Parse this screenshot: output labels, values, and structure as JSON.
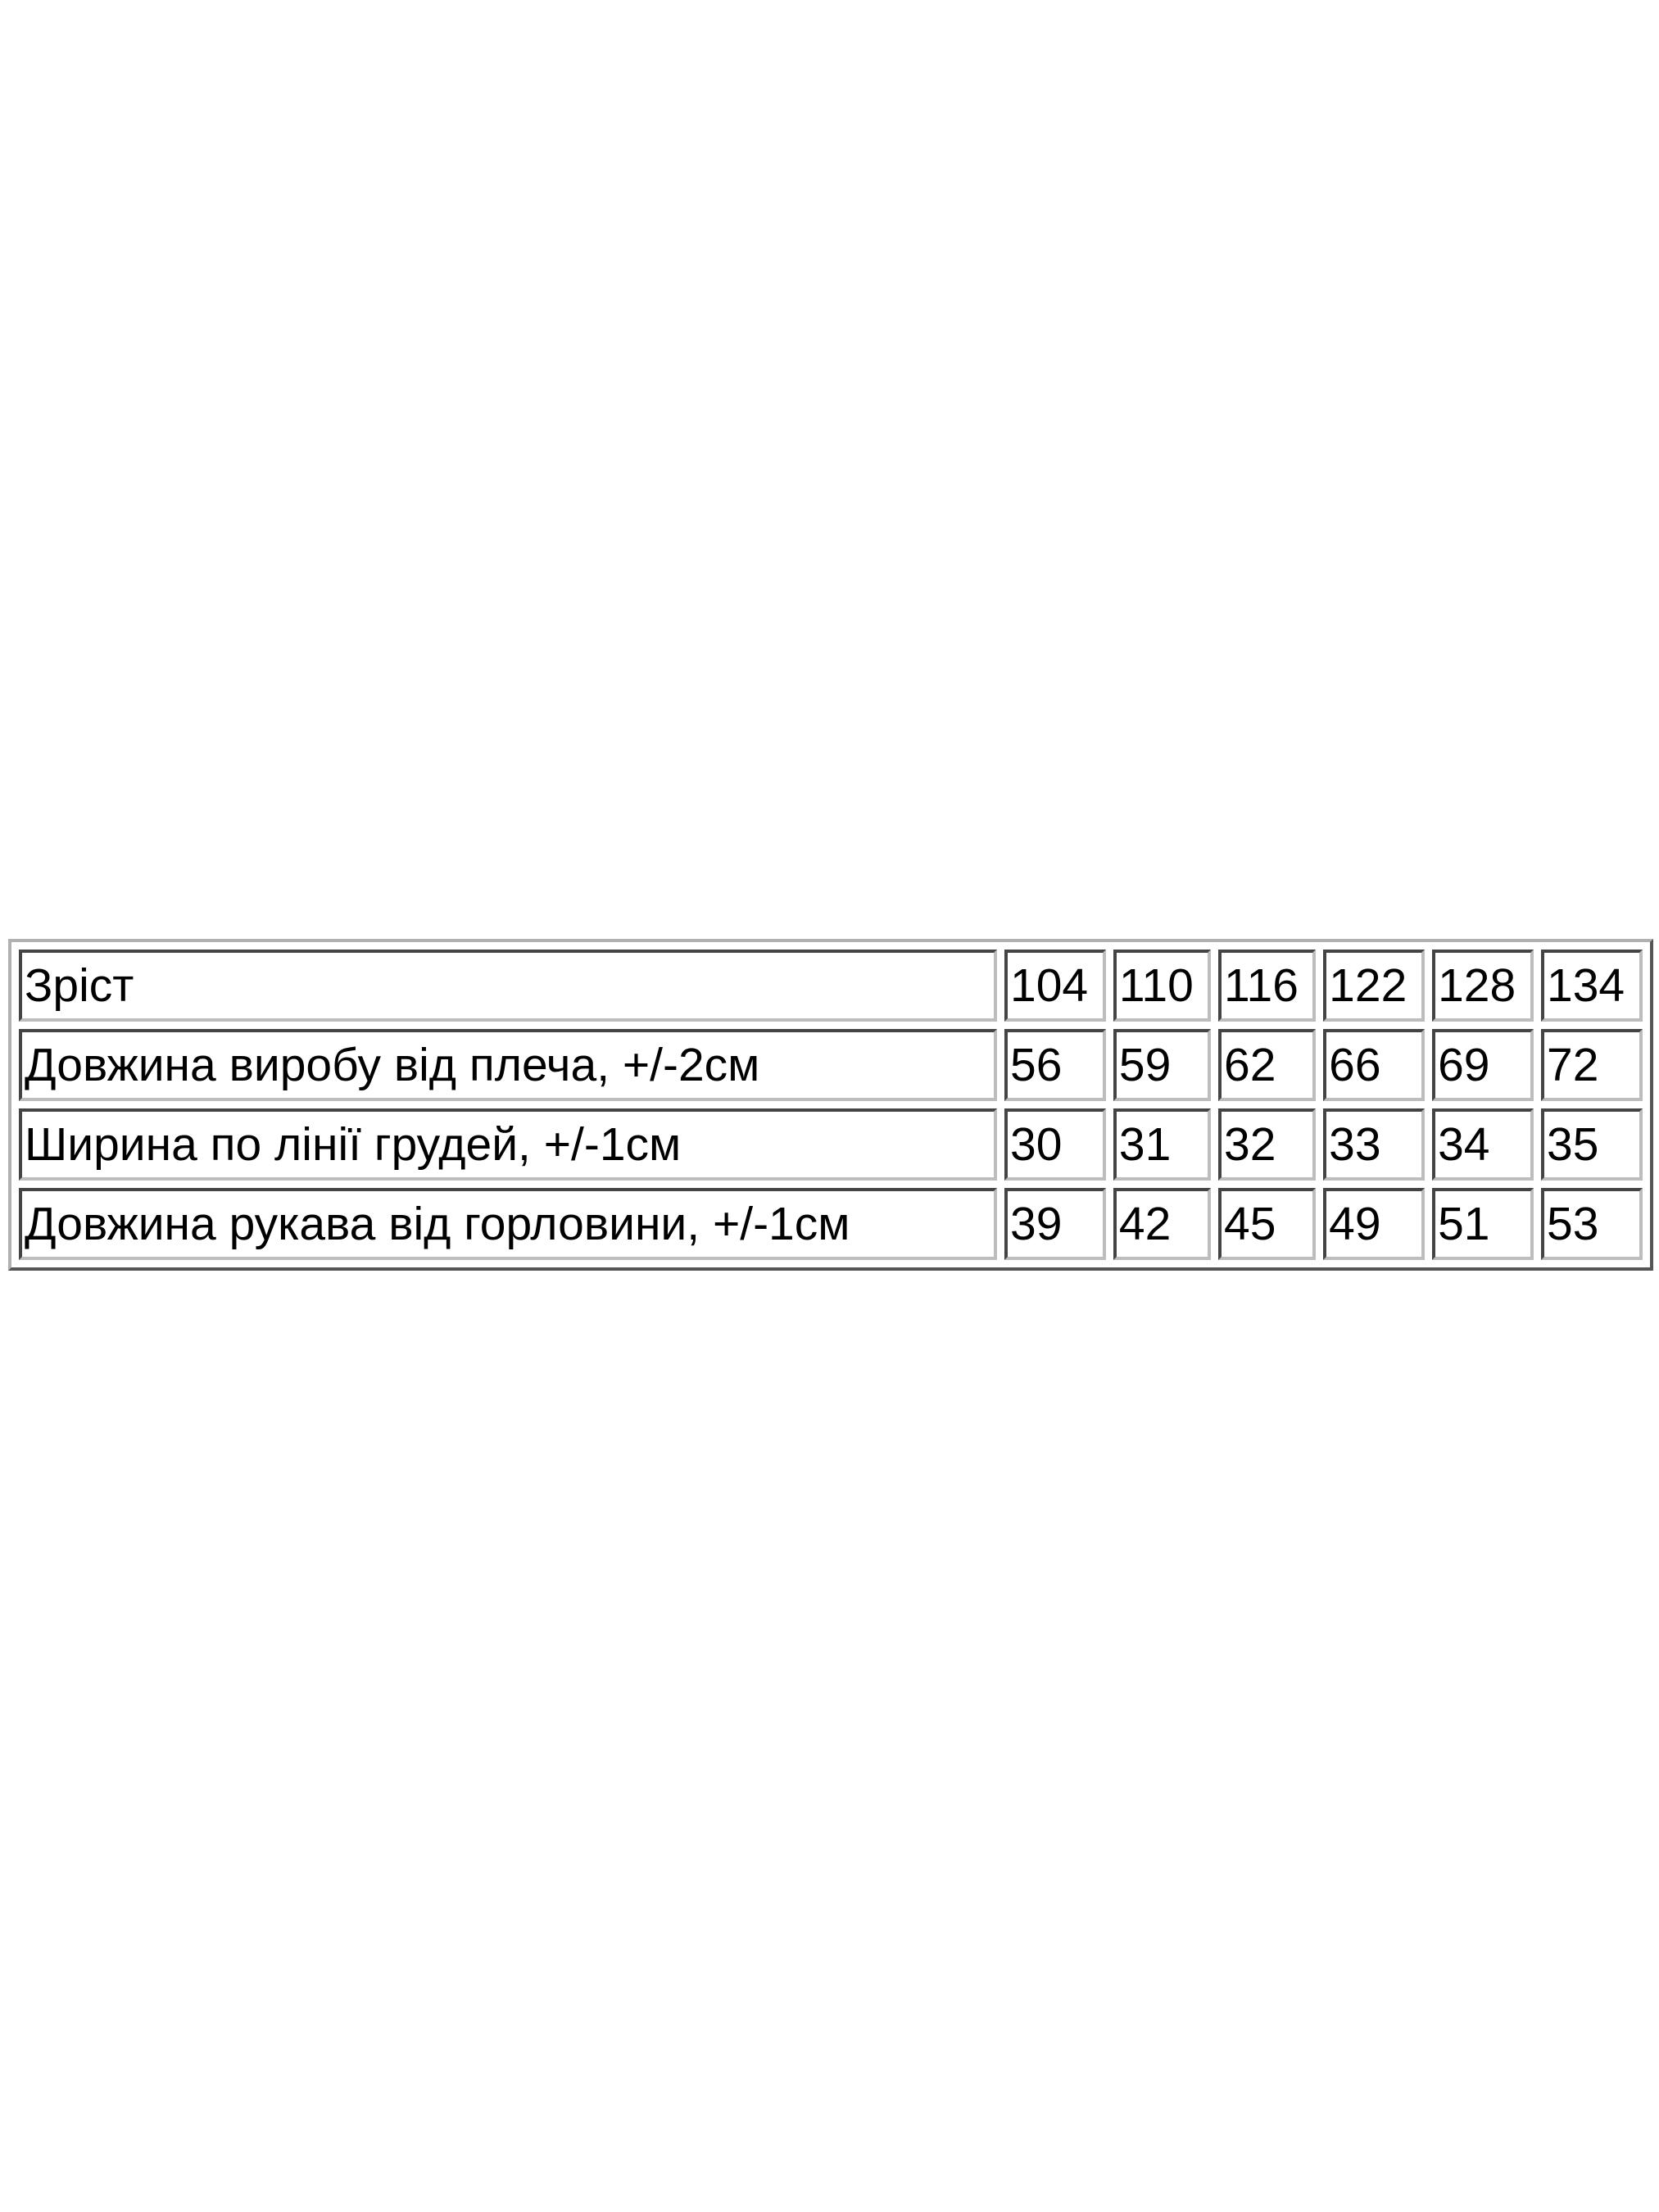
{
  "size_table": {
    "header": {
      "label": "Зріст",
      "sizes": [
        "104",
        "110",
        "116",
        "122",
        "128",
        "134"
      ]
    },
    "rows": [
      {
        "label": "Довжина виробу від плеча, +/-2см",
        "values": [
          "56",
          "59",
          "62",
          "66",
          "69",
          "72"
        ]
      },
      {
        "label": "Ширина по лінії грудей, +/-1см",
        "values": [
          "30",
          "31",
          "32",
          "33",
          "34",
          "35"
        ]
      },
      {
        "label": "Довжина рукава від горловини, +/-1см",
        "values": [
          "39",
          "42",
          "45",
          "49",
          "51",
          "53"
        ]
      }
    ]
  }
}
